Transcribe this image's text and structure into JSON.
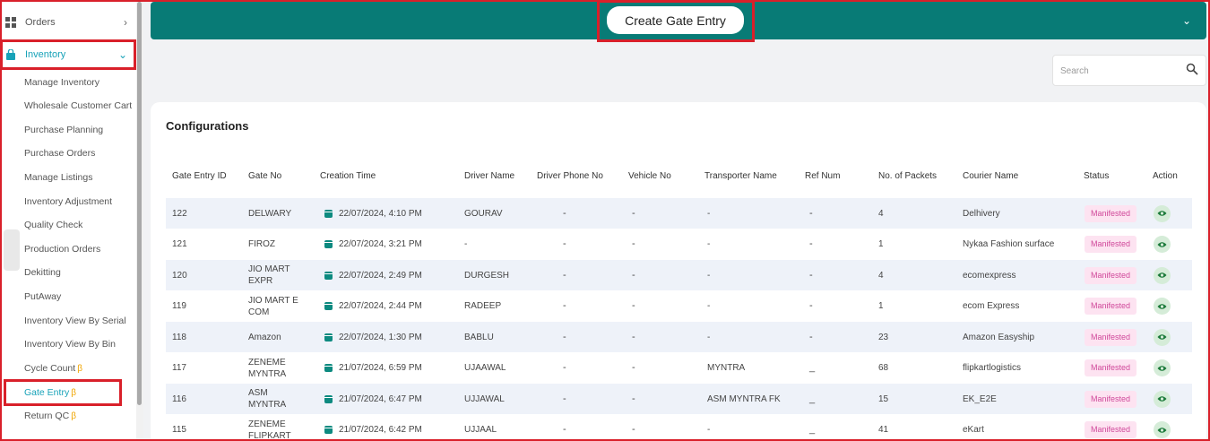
{
  "sidebar": {
    "orders_label": "Orders",
    "inventory_label": "Inventory",
    "items": [
      {
        "label": "Manage Inventory",
        "beta": ""
      },
      {
        "label": "Wholesale Customer Cart",
        "beta": ""
      },
      {
        "label": "Purchase Planning",
        "beta": ""
      },
      {
        "label": "Purchase Orders",
        "beta": ""
      },
      {
        "label": "Manage Listings",
        "beta": ""
      },
      {
        "label": "Inventory Adjustment",
        "beta": ""
      },
      {
        "label": "Quality Check",
        "beta": ""
      },
      {
        "label": "Production Orders",
        "beta": ""
      },
      {
        "label": "Dekitting",
        "beta": ""
      },
      {
        "label": "PutAway",
        "beta": ""
      },
      {
        "label": "Inventory View By Serial",
        "beta": ""
      },
      {
        "label": "Inventory View By Bin",
        "beta": ""
      },
      {
        "label": "Cycle Count",
        "beta": "β"
      },
      {
        "label": "Gate Entry",
        "beta": "β"
      },
      {
        "label": "Return QC",
        "beta": "β"
      }
    ],
    "active_item": "Gate Entry"
  },
  "header": {
    "create_button_label": "Create Gate Entry",
    "color": "#087b76"
  },
  "search": {
    "placeholder": "Search",
    "value": ""
  },
  "card": {
    "title": "Configurations"
  },
  "table": {
    "columns": [
      "Gate Entry ID",
      "Gate No",
      "Creation Time",
      "Driver Name",
      "Driver Phone No",
      "Vehicle No",
      "Transporter Name",
      "Ref Num",
      "No. of Packets",
      "Courier Name",
      "Status",
      "Action"
    ],
    "rows": [
      {
        "id": "122",
        "gate_no": "DELWARY",
        "time": "22/07/2024, 4:10 PM",
        "driver": "GOURAV",
        "phone": "-",
        "vehicle": "-",
        "transporter": "-",
        "ref": "-",
        "packets": "4",
        "courier": "Delhivery",
        "status": "Manifested"
      },
      {
        "id": "121",
        "gate_no": "FIROZ",
        "time": "22/07/2024, 3:21 PM",
        "driver": "-",
        "phone": "-",
        "vehicle": "-",
        "transporter": "-",
        "ref": "-",
        "packets": "1",
        "courier": "Nykaa Fashion surface",
        "status": "Manifested"
      },
      {
        "id": "120",
        "gate_no": "JIO MART EXPR",
        "time": "22/07/2024, 2:49 PM",
        "driver": "DURGESH",
        "phone": "-",
        "vehicle": "-",
        "transporter": "-",
        "ref": "-",
        "packets": "4",
        "courier": "ecomexpress",
        "status": "Manifested"
      },
      {
        "id": "119",
        "gate_no": "JIO MART E COM",
        "time": "22/07/2024, 2:44 PM",
        "driver": "RADEEP",
        "phone": "-",
        "vehicle": "-",
        "transporter": "-",
        "ref": "-",
        "packets": "1",
        "courier": "ecom Express",
        "status": "Manifested"
      },
      {
        "id": "118",
        "gate_no": "Amazon",
        "time": "22/07/2024, 1:30 PM",
        "driver": "BABLU",
        "phone": "-",
        "vehicle": "-",
        "transporter": "-",
        "ref": "-",
        "packets": "23",
        "courier": "Amazon Easyship",
        "status": "Manifested"
      },
      {
        "id": "117",
        "gate_no": "ZENEME MYNTRA",
        "time": "21/07/2024, 6:59 PM",
        "driver": "UJAAWAL",
        "phone": "-",
        "vehicle": "-",
        "transporter": "MYNTRA",
        "ref": "_",
        "packets": "68",
        "courier": "flipkartlogistics",
        "status": "Manifested"
      },
      {
        "id": "116",
        "gate_no": "ASM MYNTRA",
        "time": "21/07/2024, 6:47 PM",
        "driver": "UJJAWAL",
        "phone": "-",
        "vehicle": "-",
        "transporter": "ASM MYNTRA FK",
        "ref": "_",
        "packets": "15",
        "courier": "EK_E2E",
        "status": "Manifested"
      },
      {
        "id": "115",
        "gate_no": "ZENEME FLIPKART",
        "time": "21/07/2024, 6:42 PM",
        "driver": "UJJAAL",
        "phone": "-",
        "vehicle": "-",
        "transporter": "-",
        "ref": "_",
        "packets": "41",
        "courier": "eKart",
        "status": "Manifested"
      }
    ]
  },
  "colors": {
    "accent": "#17a2b8",
    "highlight_box": "#d9202a",
    "status_badge_bg": "#fde3f1",
    "status_badge_text": "#d0489a"
  }
}
